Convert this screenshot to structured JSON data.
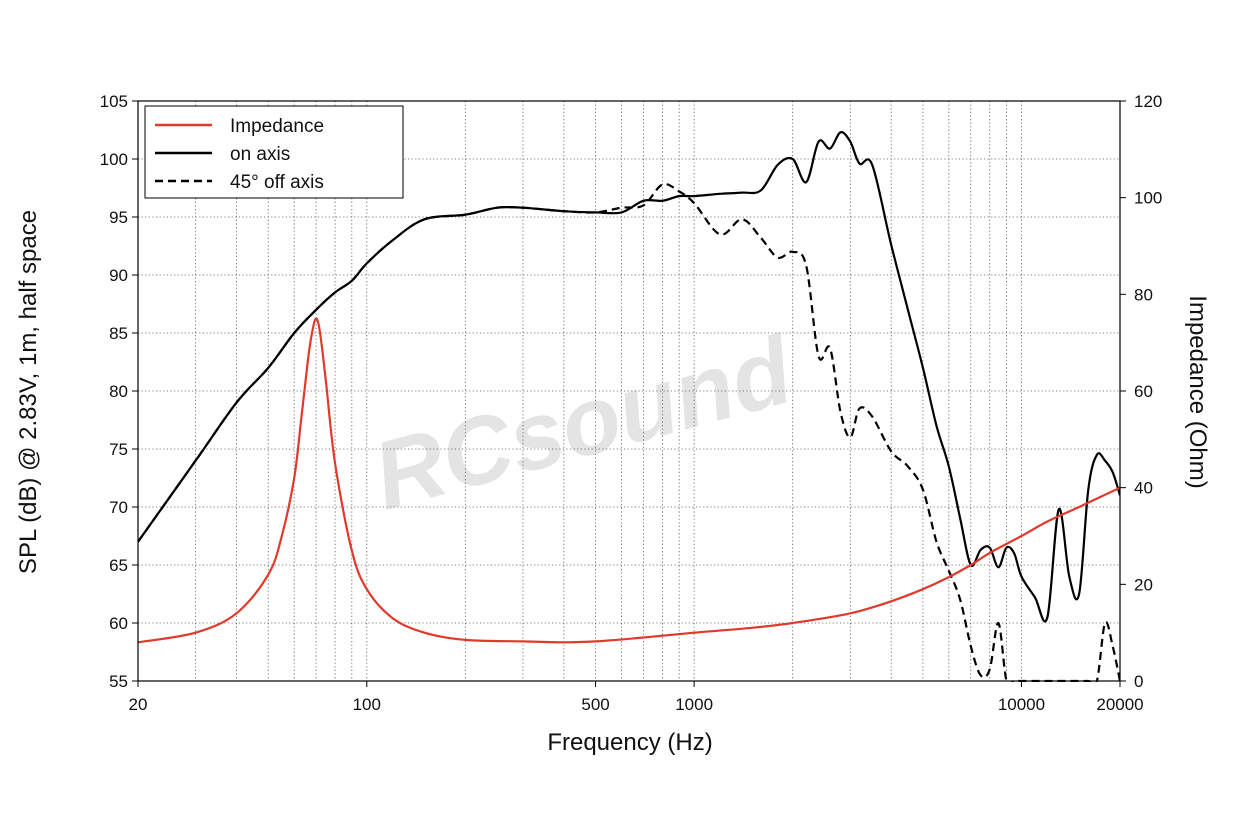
{
  "watermark": "RCsound",
  "chart_data": {
    "type": "line",
    "xlabel": "Frequency (Hz)",
    "ylabel_left": "SPL (dB) @ 2.83V, 1m, half space",
    "ylabel_right": "Impedance (Ohm)",
    "x_scale": "log",
    "xlim": [
      20,
      20000
    ],
    "ylim_left": [
      55,
      105
    ],
    "ylim_right": [
      0,
      120
    ],
    "x_ticks": [
      20,
      100,
      500,
      1000,
      10000,
      20000
    ],
    "x_tick_labels": [
      "20",
      "100",
      "500",
      "1000",
      "10000",
      "20000"
    ],
    "y_ticks_left": [
      55,
      60,
      65,
      70,
      75,
      80,
      85,
      90,
      95,
      100,
      105
    ],
    "y_ticks_right": [
      0,
      20,
      40,
      60,
      80,
      100,
      120
    ],
    "grid": true,
    "legend_position": "top-left",
    "series": [
      {
        "name": "Impedance",
        "axis": "right",
        "color": "#e03a2c",
        "dash": "solid",
        "x": [
          20,
          30,
          40,
          50,
          55,
          60,
          63,
          66,
          68,
          70,
          72,
          75,
          80,
          90,
          100,
          120,
          150,
          200,
          300,
          400,
          500,
          700,
          1000,
          1500,
          2000,
          3000,
          4000,
          5000,
          6000,
          7000,
          8000,
          10000,
          12000,
          15000,
          20000
        ],
        "values": [
          8,
          10,
          14,
          22,
          30,
          42,
          54,
          66,
          72,
          75,
          72,
          62,
          45,
          27,
          19,
          13,
          10,
          8.5,
          8.2,
          8,
          8.2,
          9,
          10,
          11,
          12,
          14,
          16.5,
          19,
          21.5,
          24,
          26.5,
          30,
          33,
          36,
          40
        ]
      },
      {
        "name": "on axis",
        "axis": "left",
        "color": "#000000",
        "dash": "solid",
        "x": [
          20,
          30,
          40,
          50,
          60,
          70,
          80,
          90,
          100,
          120,
          150,
          200,
          250,
          300,
          400,
          500,
          600,
          700,
          800,
          900,
          1000,
          1200,
          1400,
          1600,
          1800,
          2000,
          2200,
          2400,
          2600,
          2800,
          3000,
          3200,
          3500,
          4000,
          4500,
          5000,
          5500,
          6000,
          6500,
          7000,
          7500,
          8000,
          8500,
          9000,
          9500,
          10000,
          11000,
          12000,
          13000,
          14000,
          15000,
          16000,
          17000,
          18000,
          19000,
          20000
        ],
        "values": [
          67,
          74,
          79,
          82,
          85,
          87,
          88.5,
          89.5,
          91,
          93,
          94.8,
          95.2,
          95.8,
          95.8,
          95.5,
          95.4,
          95.4,
          96.4,
          96.4,
          96.8,
          96.8,
          97,
          97.1,
          97.3,
          99.5,
          100,
          98,
          101.5,
          100.9,
          102.3,
          101.5,
          99.6,
          99.5,
          92.6,
          87,
          82,
          77,
          73.5,
          69,
          65,
          66.3,
          66.5,
          64.8,
          66.5,
          66,
          64,
          62.2,
          60.5,
          69.8,
          64,
          62.5,
          71.5,
          74.5,
          74,
          73,
          71
        ]
      },
      {
        "name": "45° off axis",
        "axis": "left",
        "color": "#000000",
        "dash": "dashed",
        "x": [
          20,
          30,
          40,
          50,
          60,
          70,
          80,
          90,
          100,
          120,
          150,
          200,
          250,
          300,
          400,
          500,
          600,
          700,
          800,
          900,
          1000,
          1200,
          1400,
          1600,
          1800,
          2000,
          2200,
          2400,
          2600,
          2800,
          3000,
          3200,
          3500,
          4000,
          4500,
          5000,
          5500,
          6000,
          6500,
          7000,
          7500,
          8000,
          8500,
          9000,
          9500,
          10000,
          11000,
          12000,
          13000,
          14000,
          15000,
          16000,
          17000,
          18000,
          19000,
          20000
        ],
        "values": [
          67,
          74,
          79,
          82,
          85,
          87,
          88.5,
          89.5,
          91,
          93,
          94.8,
          95.2,
          95.8,
          95.8,
          95.5,
          95.4,
          95.8,
          96,
          97.8,
          97.2,
          96.2,
          93.5,
          94.8,
          93.2,
          91.5,
          92,
          90.8,
          83,
          83.7,
          78.2,
          76,
          78.5,
          77.8,
          74.8,
          73.5,
          71.5,
          67,
          64.5,
          62,
          58,
          55.5,
          56,
          60,
          55,
          55,
          55,
          55,
          55,
          55,
          55,
          55,
          55,
          55,
          60,
          58,
          55
        ]
      }
    ]
  }
}
